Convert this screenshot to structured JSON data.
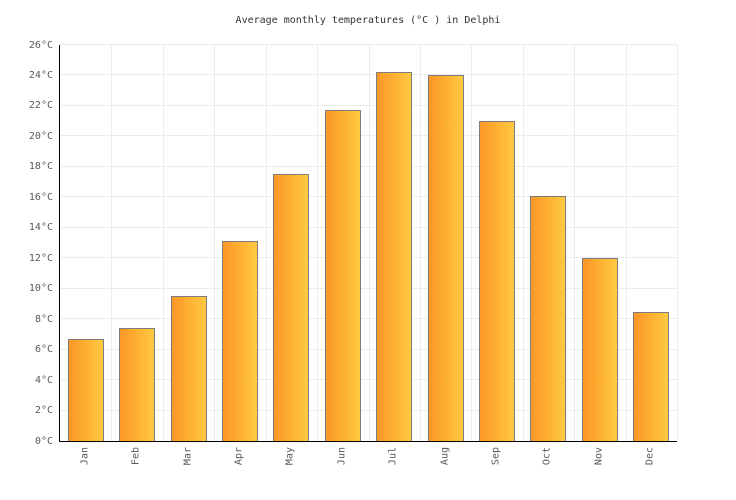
{
  "title": "Average monthly temperatures (°C ) in Delphi",
  "chart_data": {
    "type": "bar",
    "title": "Average monthly temperatures (°C ) in Delphi",
    "categories": [
      "Jan",
      "Feb",
      "Mar",
      "Apr",
      "May",
      "Jun",
      "Jul",
      "Aug",
      "Sep",
      "Oct",
      "Nov",
      "Dec"
    ],
    "values": [
      6.7,
      7.4,
      9.5,
      13.1,
      17.5,
      21.7,
      24.2,
      24.0,
      21.0,
      16.1,
      12.0,
      8.5
    ],
    "unit": "°C",
    "xlabel": "",
    "ylabel": "",
    "ylim": [
      0,
      26
    ],
    "ytick_step": 2,
    "ytick_labels": [
      "0°C",
      "2°C",
      "4°C",
      "6°C",
      "8°C",
      "10°C",
      "12°C",
      "14°C",
      "16°C",
      "18°C",
      "20°C",
      "22°C",
      "24°C",
      "26°C"
    ],
    "grid": true,
    "legend": "none",
    "colors": {
      "bar_gradient_left": "#fb9727",
      "bar_gradient_right": "#ffc940",
      "bar_border": "#7d7d7d",
      "axis_line": "#000000",
      "gridline": "#ececec",
      "tick_text": "#595959",
      "title_text": "#333333",
      "background": "#ffffff"
    }
  }
}
